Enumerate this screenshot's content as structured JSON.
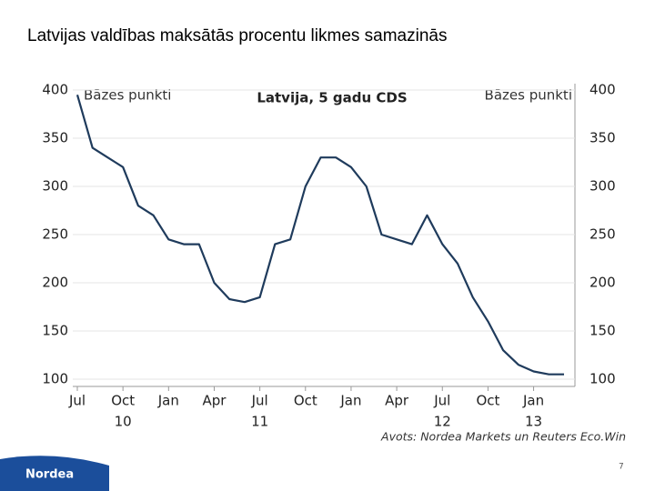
{
  "slide_title": "Latvijas valdības maksātās procentu likmes samazinās",
  "source": "Avots: Nordea Markets un Reuters Eco.Win",
  "logo": "Nordea",
  "page_number": "7",
  "chart_data": {
    "type": "line",
    "title": "Latvija, 5 gadu CDS",
    "y_label": "Bāzes punkti",
    "y2_label": "Bāzes punkti",
    "x": [
      "2010-07",
      "2010-08",
      "2010-09",
      "2010-10",
      "2010-11",
      "2010-12",
      "2011-01",
      "2011-02",
      "2011-03",
      "2011-04",
      "2011-05",
      "2011-06",
      "2011-07",
      "2011-08",
      "2011-09",
      "2011-10",
      "2011-11",
      "2011-12",
      "2012-01",
      "2012-02",
      "2012-03",
      "2012-04",
      "2012-05",
      "2012-06",
      "2012-07",
      "2012-08",
      "2012-09",
      "2012-10",
      "2012-11",
      "2012-12",
      "2013-01",
      "2013-02",
      "2013-03"
    ],
    "series": [
      {
        "name": "Latvija, 5 gadu CDS",
        "color": "#1f3b5c",
        "values": [
          395,
          340,
          330,
          320,
          280,
          270,
          245,
          240,
          240,
          200,
          183,
          180,
          185,
          240,
          245,
          300,
          330,
          330,
          320,
          300,
          250,
          245,
          240,
          270,
          240,
          220,
          185,
          160,
          130,
          115,
          108,
          105,
          105
        ]
      }
    ],
    "xlim": [
      "2010-07",
      "2013-03"
    ],
    "xticks": [
      {
        "value": "2010-07",
        "label": "Jul"
      },
      {
        "value": "2010-10",
        "label": "Oct"
      },
      {
        "value": "2011-01",
        "label": "Jan"
      },
      {
        "value": "2011-04",
        "label": "Apr"
      },
      {
        "value": "2011-07",
        "label": "Jul"
      },
      {
        "value": "2011-10",
        "label": "Oct"
      },
      {
        "value": "2012-01",
        "label": "Jan"
      },
      {
        "value": "2012-04",
        "label": "Apr"
      },
      {
        "value": "2012-07",
        "label": "Jul"
      },
      {
        "value": "2012-10",
        "label": "Oct"
      },
      {
        "value": "2013-01",
        "label": "Jan"
      }
    ],
    "x_year_labels": [
      {
        "value": "2010-10",
        "label": "10"
      },
      {
        "value": "2011-07",
        "label": "11"
      },
      {
        "value": "2012-07",
        "label": "12"
      },
      {
        "value": "2013-01",
        "label": "13"
      }
    ],
    "ylim": [
      100,
      400
    ],
    "yticks": [
      100,
      150,
      200,
      250,
      300,
      350,
      400
    ],
    "y2ticks": [
      100,
      150,
      200,
      250,
      300,
      350,
      400
    ],
    "grid": true
  }
}
